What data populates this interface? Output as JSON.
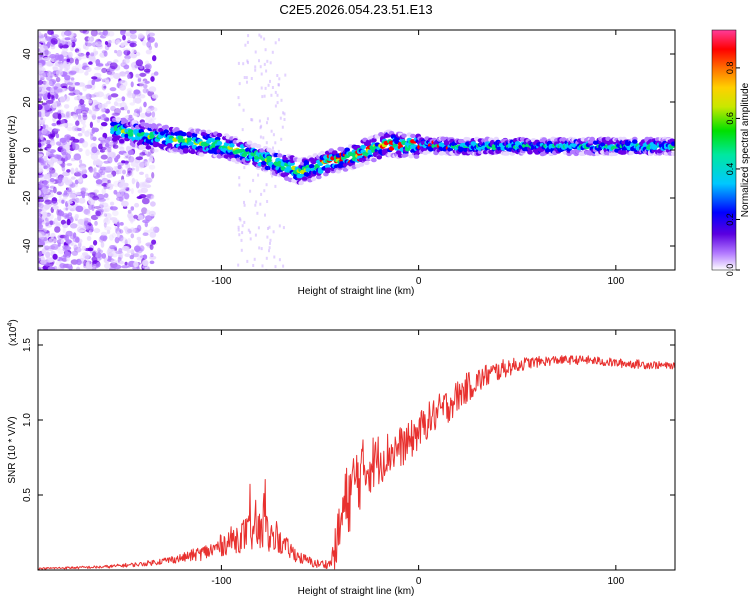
{
  "figure_title": "C2E5.2026.054.23.51.E13",
  "colors": {
    "snr_line": "#e8312f",
    "colormap": [
      "#ffffff",
      "#e8d8ff",
      "#b27aff",
      "#6a00e8",
      "#0000ff",
      "#00c8ff",
      "#00e070",
      "#c8e800",
      "#ffd000",
      "#ff7000",
      "#ff0000",
      "#ff4fa8"
    ]
  },
  "chart_data": [
    {
      "type": "heatmap",
      "title": "",
      "xlabel": "Height of straight line (km)",
      "ylabel": "Frequency (Hz)",
      "xlim": [
        -193,
        130
      ],
      "ylim": [
        -50,
        50
      ],
      "xticks": [
        -100,
        0,
        100
      ],
      "xtick_labels": [
        "-100",
        "0",
        "100"
      ],
      "yticks": [
        -40,
        -20,
        0,
        20,
        40
      ],
      "ytick_labels": [
        "-40",
        "-20",
        "0",
        "20",
        "40"
      ],
      "colorbar": {
        "label": "Normalized spectral amplitude",
        "range": [
          0,
          0.95
        ],
        "ticks": [
          0.0,
          0.2,
          0.4,
          0.6,
          0.8
        ],
        "tick_labels": [
          "0.0",
          "0.2",
          "0.4",
          "0.6",
          "0.8"
        ]
      },
      "ridge": {
        "x": [
          -155,
          -140,
          -120,
          -100,
          -85,
          -70,
          -60,
          -55,
          -45,
          -35,
          -25,
          -15,
          -10,
          0,
          20,
          50,
          80,
          100,
          130
        ],
        "y": [
          9,
          6,
          4,
          2,
          -2,
          -6,
          -9,
          -8,
          -5,
          -3,
          0,
          3,
          2,
          2,
          1.5,
          1.5,
          1.5,
          1.5,
          1.5
        ]
      }
    },
    {
      "type": "line",
      "title": "",
      "xlabel": "Height of straight line (km)",
      "ylabel": "SNR (10 * V/V)",
      "ymultiplier": "(x10",
      "ymultiplier_exp": "4",
      "xlim": [
        -193,
        130
      ],
      "ylim": [
        0,
        1.6
      ],
      "xticks": [
        -100,
        0,
        100
      ],
      "xtick_labels": [
        "-100",
        "0",
        "100"
      ],
      "yticks": [
        0.5,
        1.0,
        1.5
      ],
      "ytick_labels": [
        "0.5",
        "1.0",
        "1.5"
      ],
      "series": [
        {
          "name": "SNR",
          "x": [
            -193,
            -160,
            -140,
            -120,
            -105,
            -95,
            -85,
            -78,
            -70,
            -60,
            -52,
            -45,
            -42,
            -38,
            -32,
            -25,
            -15,
            -5,
            5,
            15,
            25,
            35,
            45,
            55,
            70,
            85,
            100,
            115,
            130
          ],
          "values": [
            0.01,
            0.02,
            0.04,
            0.08,
            0.13,
            0.2,
            0.25,
            0.25,
            0.18,
            0.08,
            0.04,
            0.04,
            0.15,
            0.4,
            0.6,
            0.7,
            0.78,
            0.85,
            1.0,
            1.1,
            1.22,
            1.3,
            1.35,
            1.38,
            1.4,
            1.4,
            1.38,
            1.37,
            1.36
          ],
          "noise": [
            0.005,
            0.01,
            0.015,
            0.03,
            0.06,
            0.09,
            0.13,
            0.15,
            0.08,
            0.04,
            0.03,
            0.03,
            0.15,
            0.25,
            0.25,
            0.2,
            0.15,
            0.13,
            0.12,
            0.12,
            0.1,
            0.08,
            0.06,
            0.04,
            0.03,
            0.03,
            0.03,
            0.03,
            0.02
          ]
        }
      ]
    }
  ]
}
